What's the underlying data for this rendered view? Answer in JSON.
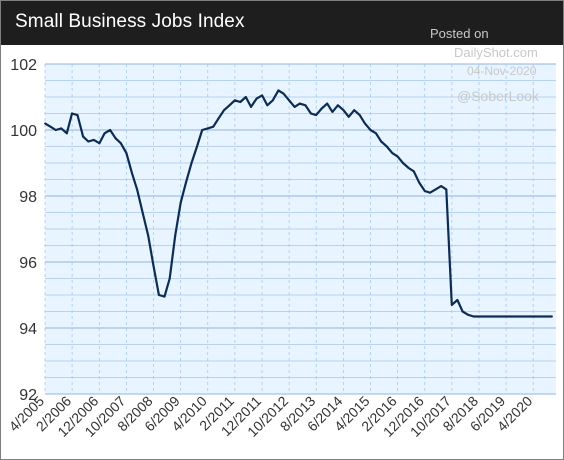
{
  "header": {
    "title": "Small Business Jobs Index"
  },
  "watermark": {
    "posted_on": "Posted on",
    "site": "DailyShot.com",
    "date": "04-Nov-2020",
    "handle": "@SoberLook"
  },
  "colors": {
    "plot_bg": "#e8f4ff",
    "line": "#0d2c54",
    "gridline": "#a9c9ea",
    "title_bg": "#1e1e1e"
  },
  "chart_data": {
    "type": "line",
    "title": "Small Business Jobs Index",
    "xlabel": "",
    "ylabel": "",
    "ylim": [
      92,
      102
    ],
    "yticks": [
      92,
      94,
      96,
      98,
      100,
      102
    ],
    "xlim": [
      2005.25,
      2020.95
    ],
    "xtick_labels": [
      "4/2005",
      "2/2006",
      "12/2006",
      "10/2007",
      "8/2008",
      "6/2009",
      "4/2010",
      "2/2011",
      "12/2011",
      "10/2012",
      "8/2013",
      "6/2014",
      "4/2015",
      "2/2016",
      "12/2016",
      "10/2017",
      "8/2018",
      "6/2019",
      "4/2020"
    ],
    "xtick_positions": [
      2005.25,
      2006.083,
      2006.917,
      2007.75,
      2008.583,
      2009.417,
      2010.25,
      2011.083,
      2011.917,
      2012.75,
      2013.583,
      2014.417,
      2015.25,
      2016.083,
      2016.917,
      2017.75,
      2018.583,
      2019.417,
      2020.25
    ],
    "grid": true,
    "series": [
      {
        "x": [
          2005.25,
          2005.42,
          2005.58,
          2005.75,
          2005.92,
          2006.08,
          2006.25,
          2006.42,
          2006.58,
          2006.75,
          2006.92,
          2007.08,
          2007.25,
          2007.42,
          2007.58,
          2007.75,
          2007.92,
          2008.08,
          2008.25,
          2008.42,
          2008.58,
          2008.75,
          2008.92,
          2009.08,
          2009.25,
          2009.42,
          2009.58,
          2009.75,
          2009.92,
          2010.08,
          2010.25,
          2010.42,
          2010.58,
          2010.75,
          2010.92,
          2011.08,
          2011.25,
          2011.42,
          2011.58,
          2011.75,
          2011.92,
          2012.08,
          2012.25,
          2012.42,
          2012.58,
          2012.75,
          2012.92,
          2013.08,
          2013.25,
          2013.42,
          2013.58,
          2013.75,
          2013.92,
          2014.08,
          2014.25,
          2014.42,
          2014.58,
          2014.75,
          2014.92,
          2015.08,
          2015.25,
          2015.42,
          2015.58,
          2015.75,
          2015.92,
          2016.08,
          2016.25,
          2016.42,
          2016.58,
          2016.75,
          2016.92,
          2017.08,
          2017.25,
          2017.42,
          2017.58,
          2017.75,
          2017.92,
          2018.08,
          2018.25,
          2018.42,
          2018.58,
          2018.75,
          2018.92,
          2019.08,
          2019.25,
          2019.42,
          2019.58,
          2019.75,
          2019.92,
          2020.08,
          2020.17,
          2020.25,
          2020.33,
          2020.42,
          2020.5,
          2020.58,
          2020.67,
          2020.75,
          2020.83
        ],
        "values": [
          100.2,
          100.1,
          100.0,
          100.05,
          99.9,
          100.5,
          100.45,
          99.8,
          99.65,
          99.7,
          99.6,
          99.9,
          100.0,
          99.75,
          99.6,
          99.3,
          98.7,
          98.2,
          97.5,
          96.8,
          95.9,
          95.0,
          94.95,
          95.5,
          96.8,
          97.8,
          98.4,
          99.0,
          99.5,
          100.0,
          100.05,
          100.1,
          100.35,
          100.6,
          100.75,
          100.9,
          100.85,
          101.0,
          100.7,
          100.95,
          101.05,
          100.75,
          100.9,
          101.2,
          101.1,
          100.9,
          100.7,
          100.8,
          100.75,
          100.5,
          100.45,
          100.65,
          100.8,
          100.55,
          100.75,
          100.6,
          100.4,
          100.6,
          100.45,
          100.2,
          100.0,
          99.9,
          99.65,
          99.5,
          99.3,
          99.2,
          99.0,
          98.85,
          98.75,
          98.4,
          98.15,
          98.1,
          98.2,
          98.3,
          98.2,
          94.7,
          94.85,
          94.5,
          94.4,
          94.35,
          94.35,
          94.35,
          94.35,
          94.35,
          94.35,
          94.35,
          94.35,
          94.35,
          94.35,
          94.35,
          94.35,
          94.35,
          94.35,
          94.35,
          94.35,
          94.35,
          94.35,
          94.35,
          94.35
        ]
      }
    ]
  }
}
